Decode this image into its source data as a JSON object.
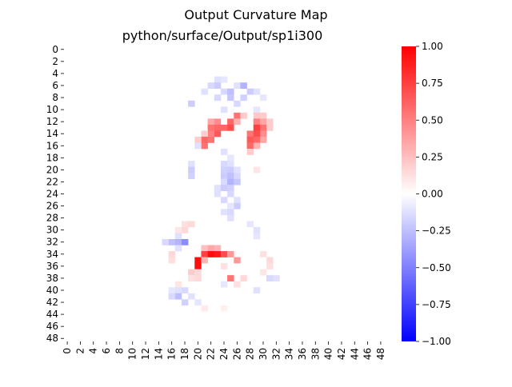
{
  "chart_data": {
    "type": "heatmap",
    "title": "Output Curvature Map",
    "subtitle": "python/surface/Output/sp1i300",
    "rows": 49,
    "cols": 49,
    "x_tick_labels": [
      "0",
      "2",
      "4",
      "6",
      "8",
      "10",
      "12",
      "14",
      "16",
      "18",
      "20",
      "22",
      "24",
      "26",
      "28",
      "30",
      "32",
      "34",
      "36",
      "38",
      "40",
      "42",
      "44",
      "46",
      "48"
    ],
    "y_tick_labels": [
      "0",
      "2",
      "4",
      "6",
      "8",
      "10",
      "12",
      "14",
      "16",
      "18",
      "20",
      "22",
      "24",
      "26",
      "28",
      "30",
      "32",
      "34",
      "36",
      "38",
      "40",
      "42",
      "44",
      "46",
      "48"
    ],
    "colorbar": {
      "min": -1.0,
      "max": 1.0,
      "colormap": "bwr",
      "tick_labels": [
        "1.00",
        "0.75",
        "0.50",
        "0.25",
        "0.00",
        "−0.25",
        "−0.50",
        "−0.75",
        "−1.00"
      ],
      "tick_values": [
        1.0,
        0.75,
        0.5,
        0.25,
        0.0,
        -0.25,
        -0.5,
        -0.75,
        -1.0
      ]
    },
    "cells": [
      {
        "r": 5,
        "c": 23,
        "v": -0.12
      },
      {
        "r": 5,
        "c": 24,
        "v": -0.1
      },
      {
        "r": 6,
        "c": 22,
        "v": -0.15
      },
      {
        "r": 6,
        "c": 23,
        "v": -0.2
      },
      {
        "r": 6,
        "c": 26,
        "v": -0.12
      },
      {
        "r": 6,
        "c": 27,
        "v": -0.3
      },
      {
        "r": 7,
        "c": 21,
        "v": -0.12
      },
      {
        "r": 7,
        "c": 24,
        "v": -0.15
      },
      {
        "r": 7,
        "c": 25,
        "v": -0.25
      },
      {
        "r": 7,
        "c": 28,
        "v": -0.2
      },
      {
        "r": 7,
        "c": 29,
        "v": -0.12
      },
      {
        "r": 8,
        "c": 23,
        "v": -0.15
      },
      {
        "r": 8,
        "c": 25,
        "v": -0.22
      },
      {
        "r": 8,
        "c": 27,
        "v": -0.18
      },
      {
        "r": 8,
        "c": 30,
        "v": -0.1
      },
      {
        "r": 9,
        "c": 19,
        "v": -0.2
      },
      {
        "r": 9,
        "c": 26,
        "v": -0.15
      },
      {
        "r": 10,
        "c": 24,
        "v": -0.12
      },
      {
        "r": 10,
        "c": 29,
        "v": -0.1
      },
      {
        "r": 11,
        "c": 26,
        "v": 0.55
      },
      {
        "r": 11,
        "c": 27,
        "v": 0.2
      },
      {
        "r": 11,
        "c": 29,
        "v": 0.22
      },
      {
        "r": 11,
        "c": 30,
        "v": 0.2
      },
      {
        "r": 12,
        "c": 22,
        "v": 0.35
      },
      {
        "r": 12,
        "c": 23,
        "v": 0.45
      },
      {
        "r": 12,
        "c": 25,
        "v": 0.6
      },
      {
        "r": 12,
        "c": 26,
        "v": 0.3
      },
      {
        "r": 12,
        "c": 29,
        "v": 0.5
      },
      {
        "r": 12,
        "c": 30,
        "v": 0.35
      },
      {
        "r": 12,
        "c": 31,
        "v": 0.2
      },
      {
        "r": 13,
        "c": 24,
        "v": 0.6
      },
      {
        "r": 13,
        "c": 25,
        "v": 0.7
      },
      {
        "r": 13,
        "c": 22,
        "v": 0.55
      },
      {
        "r": 13,
        "c": 23,
        "v": 0.6
      },
      {
        "r": 13,
        "c": 29,
        "v": 0.75
      },
      {
        "r": 13,
        "c": 30,
        "v": 0.55
      },
      {
        "r": 13,
        "c": 31,
        "v": 0.2
      },
      {
        "r": 14,
        "c": 23,
        "v": 0.65
      },
      {
        "r": 14,
        "c": 22,
        "v": 0.5
      },
      {
        "r": 14,
        "c": 28,
        "v": 0.55
      },
      {
        "r": 14,
        "c": 29,
        "v": 0.7
      },
      {
        "r": 14,
        "c": 30,
        "v": 0.45
      },
      {
        "r": 14,
        "c": 21,
        "v": 0.2
      },
      {
        "r": 15,
        "c": 21,
        "v": 0.6
      },
      {
        "r": 15,
        "c": 22,
        "v": 0.55
      },
      {
        "r": 15,
        "c": 28,
        "v": 0.65
      },
      {
        "r": 15,
        "c": 29,
        "v": 0.6
      },
      {
        "r": 15,
        "c": 30,
        "v": 0.35
      },
      {
        "r": 15,
        "c": 20,
        "v": 0.2
      },
      {
        "r": 16,
        "c": 21,
        "v": 0.55
      },
      {
        "r": 16,
        "c": 20,
        "v": -0.12
      },
      {
        "r": 16,
        "c": 28,
        "v": 0.6
      },
      {
        "r": 16,
        "c": 29,
        "v": 0.3
      },
      {
        "r": 17,
        "c": 28,
        "v": 0.2
      },
      {
        "r": 17,
        "c": 24,
        "v": -0.12
      },
      {
        "r": 18,
        "c": 25,
        "v": -0.1
      },
      {
        "r": 19,
        "c": 19,
        "v": -0.12
      },
      {
        "r": 19,
        "c": 24,
        "v": -0.15
      },
      {
        "r": 19,
        "c": 25,
        "v": -0.12
      },
      {
        "r": 20,
        "c": 19,
        "v": -0.2
      },
      {
        "r": 20,
        "c": 24,
        "v": -0.18
      },
      {
        "r": 20,
        "c": 25,
        "v": -0.2
      },
      {
        "r": 20,
        "c": 26,
        "v": -0.12
      },
      {
        "r": 20,
        "c": 29,
        "v": 0.1
      },
      {
        "r": 21,
        "c": 19,
        "v": -0.18
      },
      {
        "r": 21,
        "c": 24,
        "v": -0.2
      },
      {
        "r": 21,
        "c": 25,
        "v": -0.25
      },
      {
        "r": 21,
        "c": 26,
        "v": -0.15
      },
      {
        "r": 22,
        "c": 24,
        "v": -0.15
      },
      {
        "r": 22,
        "c": 25,
        "v": -0.3
      },
      {
        "r": 22,
        "c": 26,
        "v": -0.22
      },
      {
        "r": 23,
        "c": 23,
        "v": -0.12
      },
      {
        "r": 23,
        "c": 24,
        "v": -0.2
      },
      {
        "r": 23,
        "c": 25,
        "v": -0.18
      },
      {
        "r": 24,
        "c": 23,
        "v": -0.12
      },
      {
        "r": 24,
        "c": 25,
        "v": -0.15
      },
      {
        "r": 25,
        "c": 24,
        "v": -0.15
      },
      {
        "r": 25,
        "c": 26,
        "v": -0.12
      },
      {
        "r": 26,
        "c": 26,
        "v": -0.2
      },
      {
        "r": 26,
        "c": 25,
        "v": -0.1
      },
      {
        "r": 27,
        "c": 24,
        "v": -0.12
      },
      {
        "r": 27,
        "c": 25,
        "v": -0.15
      },
      {
        "r": 28,
        "c": 25,
        "v": -0.12
      },
      {
        "r": 29,
        "c": 18,
        "v": 0.12
      },
      {
        "r": 29,
        "c": 19,
        "v": 0.15
      },
      {
        "r": 29,
        "c": 28,
        "v": -0.1
      },
      {
        "r": 30,
        "c": 18,
        "v": 0.15
      },
      {
        "r": 30,
        "c": 17,
        "v": 0.1
      },
      {
        "r": 30,
        "c": 29,
        "v": -0.12
      },
      {
        "r": 31,
        "c": 17,
        "v": -0.12
      },
      {
        "r": 31,
        "c": 29,
        "v": -0.1
      },
      {
        "r": 32,
        "c": 16,
        "v": -0.25
      },
      {
        "r": 32,
        "c": 17,
        "v": -0.3
      },
      {
        "r": 32,
        "c": 18,
        "v": -0.45
      },
      {
        "r": 32,
        "c": 15,
        "v": -0.15
      },
      {
        "r": 33,
        "c": 21,
        "v": 0.25
      },
      {
        "r": 33,
        "c": 22,
        "v": 0.35
      },
      {
        "r": 33,
        "c": 23,
        "v": 0.3
      },
      {
        "r": 33,
        "c": 17,
        "v": -0.12
      },
      {
        "r": 34,
        "c": 21,
        "v": 0.75
      },
      {
        "r": 34,
        "c": 22,
        "v": 0.95
      },
      {
        "r": 34,
        "c": 23,
        "v": 0.9
      },
      {
        "r": 34,
        "c": 24,
        "v": 0.7
      },
      {
        "r": 34,
        "c": 25,
        "v": 0.4
      },
      {
        "r": 34,
        "c": 16,
        "v": 0.15
      },
      {
        "r": 34,
        "c": 30,
        "v": 0.12
      },
      {
        "r": 35,
        "c": 20,
        "v": 0.95
      },
      {
        "r": 35,
        "c": 21,
        "v": 0.3
      },
      {
        "r": 35,
        "c": 26,
        "v": 0.4
      },
      {
        "r": 35,
        "c": 16,
        "v": 0.12
      },
      {
        "r": 35,
        "c": 31,
        "v": 0.15
      },
      {
        "r": 36,
        "c": 20,
        "v": 0.95
      },
      {
        "r": 36,
        "c": 31,
        "v": 0.12
      },
      {
        "r": 36,
        "c": 24,
        "v": 0.12
      },
      {
        "r": 37,
        "c": 19,
        "v": 0.2
      },
      {
        "r": 37,
        "c": 20,
        "v": 0.15
      },
      {
        "r": 37,
        "c": 30,
        "v": 0.1
      },
      {
        "r": 38,
        "c": 19,
        "v": 0.12
      },
      {
        "r": 38,
        "c": 20,
        "v": 0.15
      },
      {
        "r": 38,
        "c": 25,
        "v": 0.55
      },
      {
        "r": 38,
        "c": 27,
        "v": 0.15
      },
      {
        "r": 38,
        "c": 31,
        "v": -0.15
      },
      {
        "r": 38,
        "c": 32,
        "v": -0.12
      },
      {
        "r": 39,
        "c": 17,
        "v": 0.1
      },
      {
        "r": 39,
        "c": 26,
        "v": 0.12
      },
      {
        "r": 39,
        "c": 24,
        "v": -0.1
      },
      {
        "r": 40,
        "c": 17,
        "v": -0.12
      },
      {
        "r": 40,
        "c": 18,
        "v": -0.15
      },
      {
        "r": 40,
        "c": 16,
        "v": -0.1
      },
      {
        "r": 40,
        "c": 29,
        "v": -0.12
      },
      {
        "r": 41,
        "c": 17,
        "v": -0.25
      },
      {
        "r": 41,
        "c": 16,
        "v": -0.15
      },
      {
        "r": 41,
        "c": 19,
        "v": -0.12
      },
      {
        "r": 42,
        "c": 18,
        "v": -0.18
      },
      {
        "r": 42,
        "c": 20,
        "v": -0.1
      },
      {
        "r": 43,
        "c": 21,
        "v": 0.08
      },
      {
        "r": 43,
        "c": 24,
        "v": 0.06
      }
    ]
  }
}
